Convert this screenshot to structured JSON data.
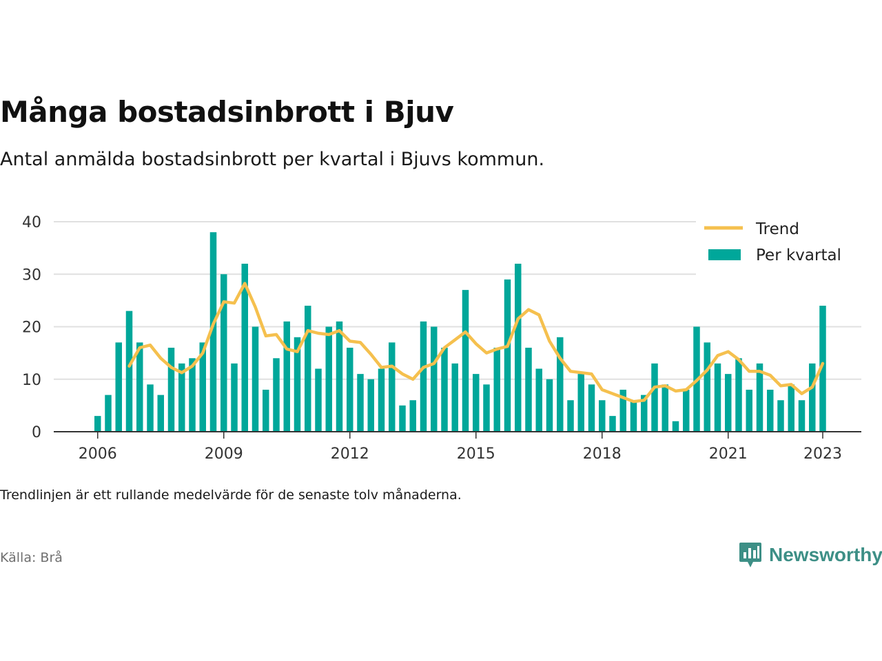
{
  "header": {
    "title": "Många bostadsinbrott i Bjuv",
    "subtitle": "Antal anmälda bostadsinbrott per kvartal i Bjuvs kommun."
  },
  "footer": {
    "note": "Trendlinjen är ett rullande medelvärde för de senaste tolv månaderna.",
    "source": "Källa: Brå",
    "brand": "Newsworthy"
  },
  "colors": {
    "bars": "#00a79a",
    "trend": "#f5c04e",
    "grid": "#e0e0e0",
    "axis": "#333333",
    "brand": "#3d8f86"
  },
  "chart_data": {
    "type": "bar",
    "xlim": [
      "2006",
      "2023"
    ],
    "x_tick_labels": [
      "2006",
      "2009",
      "2012",
      "2015",
      "2018",
      "2021",
      "2023"
    ],
    "ylim": [
      0,
      40
    ],
    "y_ticks": [
      0,
      10,
      20,
      30,
      40
    ],
    "grid": true,
    "legend_position": "top-right",
    "categories": [
      "2006Q1",
      "2006Q2",
      "2006Q3",
      "2006Q4",
      "2007Q1",
      "2007Q2",
      "2007Q3",
      "2007Q4",
      "2008Q1",
      "2008Q2",
      "2008Q3",
      "2008Q4",
      "2009Q1",
      "2009Q2",
      "2009Q3",
      "2009Q4",
      "2010Q1",
      "2010Q2",
      "2010Q3",
      "2010Q4",
      "2011Q1",
      "2011Q2",
      "2011Q3",
      "2011Q4",
      "2012Q1",
      "2012Q2",
      "2012Q3",
      "2012Q4",
      "2013Q1",
      "2013Q2",
      "2013Q3",
      "2013Q4",
      "2014Q1",
      "2014Q2",
      "2014Q3",
      "2014Q4",
      "2015Q1",
      "2015Q2",
      "2015Q3",
      "2015Q4",
      "2016Q1",
      "2016Q2",
      "2016Q3",
      "2016Q4",
      "2017Q1",
      "2017Q2",
      "2017Q3",
      "2017Q4",
      "2018Q1",
      "2018Q2",
      "2018Q3",
      "2018Q4",
      "2019Q1",
      "2019Q2",
      "2019Q3",
      "2019Q4",
      "2020Q1",
      "2020Q2",
      "2020Q3",
      "2020Q4",
      "2021Q1",
      "2021Q2",
      "2021Q3",
      "2021Q4",
      "2022Q1",
      "2022Q2",
      "2022Q3",
      "2022Q4",
      "2023Q1",
      "2023Q2"
    ],
    "series": [
      {
        "name": "Per kvartal",
        "type": "bar",
        "values": [
          3,
          7,
          17,
          23,
          17,
          9,
          7,
          16,
          13,
          14,
          17,
          38,
          30,
          13,
          32,
          20,
          8,
          14,
          21,
          18,
          24,
          12,
          20,
          21,
          16,
          11,
          10,
          12,
          17,
          5,
          6,
          21,
          20,
          16,
          13,
          27,
          11,
          9,
          16,
          29,
          32,
          16,
          12,
          10,
          18,
          6,
          11,
          9,
          6,
          3,
          8,
          6,
          7,
          13,
          9,
          2,
          8,
          20,
          17,
          13,
          11,
          14,
          8,
          13,
          8,
          6,
          9,
          6,
          13,
          24
        ]
      },
      {
        "name": "Trend",
        "type": "line",
        "values": [
          null,
          null,
          null,
          12.5,
          16,
          16.5,
          14,
          12.25,
          11.25,
          12.5,
          15,
          20.5,
          24.75,
          24.5,
          28.25,
          23.75,
          18.25,
          18.5,
          15.75,
          15.25,
          19.25,
          18.75,
          18.5,
          19.25,
          17.25,
          17,
          14.75,
          12.25,
          12.5,
          11,
          10,
          12.25,
          13,
          16,
          17.5,
          19,
          16.75,
          15,
          15.75,
          16.25,
          21.5,
          23.25,
          22.25,
          17.25,
          14,
          11.5,
          11.25,
          11,
          8,
          7.25,
          6.5,
          5.75,
          6,
          8.5,
          8.75,
          7.75,
          8,
          9.75,
          11.75,
          14.5,
          15.25,
          13.75,
          11.5,
          11.5,
          10.75,
          8.75,
          9,
          7.25,
          8.5,
          13
        ]
      }
    ]
  }
}
